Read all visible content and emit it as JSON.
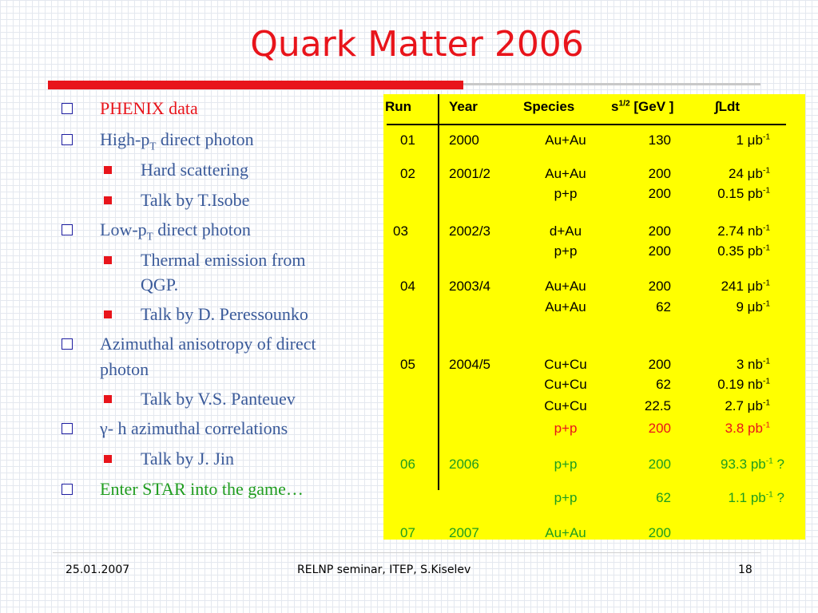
{
  "title": "Quark Matter 2006",
  "bullets": [
    {
      "text": "PHENIX data",
      "level": 1,
      "color": "#e8141b"
    },
    {
      "text_pre": "High-p",
      "sub": "T",
      "text_post": " direct photon",
      "level": 1
    },
    {
      "text": "Hard scattering",
      "level": 2
    },
    {
      "text": "Talk by T.Isobe",
      "level": 2
    },
    {
      "text_pre": "Low-p",
      "sub": "T",
      "text_post": " direct photon",
      "level": 1
    },
    {
      "text": "Thermal emission from",
      "text2": "QGP.",
      "level": 2
    },
    {
      "text": "Talk by D. Peressounko",
      "level": 2
    },
    {
      "text": "Azimuthal anisotropy of direct",
      "text2": "photon",
      "level": 1
    },
    {
      "text": "Talk by V.S. Panteuev",
      "level": 2
    },
    {
      "text": "γ- h azimuthal correlations",
      "level": 1
    },
    {
      "text": "Talk by J. Jin",
      "level": 2
    },
    {
      "text": "Enter STAR into the game…",
      "level": 1,
      "color": "#1f9c1f"
    }
  ],
  "table": {
    "headers": {
      "run": "Run",
      "year": "Year",
      "species": "Species",
      "energy_pre": "s",
      "energy_sup": "1/2",
      "energy_post": " [GeV ]",
      "lumi": "∫Ldt"
    },
    "rows": [
      {
        "run": "01",
        "year": "2000",
        "species": "Au+Au",
        "energy": "130",
        "lumi_val": "1 μb",
        "lumi_sup": "-1"
      },
      {
        "run": "02",
        "year": "2001/2",
        "species": "Au+Au",
        "energy": "200",
        "lumi_val": "24 μb",
        "lumi_sup": "-1"
      },
      {
        "run": "",
        "year": "",
        "species": "p+p",
        "energy": "200",
        "lumi_val": "0.15 pb",
        "lumi_sup": "-1"
      },
      {
        "run": "03",
        "year": "2002/3",
        "species": "d+Au",
        "energy": "200",
        "lumi_val": "2.74 nb",
        "lumi_sup": "-1"
      },
      {
        "run": "",
        "year": "",
        "species": "p+p",
        "energy": "200",
        "lumi_val": "0.35 pb",
        "lumi_sup": "-1"
      },
      {
        "run": "04",
        "year": "2003/4",
        "species": "Au+Au",
        "energy": "200",
        "lumi_val": "241 μb",
        "lumi_sup": "-1"
      },
      {
        "run": "",
        "year": "",
        "species": "Au+Au",
        "energy": "62",
        "lumi_val": "9 μb",
        "lumi_sup": "-1"
      },
      {
        "run": "05",
        "year": "2004/5",
        "species": "Cu+Cu",
        "energy": "200",
        "lumi_val": "3 nb",
        "lumi_sup": "-1"
      },
      {
        "run": "",
        "year": "",
        "species": "Cu+Cu",
        "energy": "62",
        "lumi_val": "0.19 nb",
        "lumi_sup": "-1"
      },
      {
        "run": "",
        "year": "",
        "species": "Cu+Cu",
        "energy": "22.5",
        "lumi_val": "2.7 μb",
        "lumi_sup": "-1"
      },
      {
        "run": "",
        "year": "",
        "species": "p+p",
        "energy": "200",
        "lumi_val": "3.8 pb",
        "lumi_sup": "-1",
        "color": "#e8141b"
      },
      {
        "run": "06",
        "year": "2006",
        "species": "p+p",
        "energy": "200",
        "lumi_val": "93.3 pb",
        "lumi_sup": "-1",
        "lumi_post": " ?",
        "color": "#1f9c1f"
      },
      {
        "run": "",
        "year": "",
        "species": "p+p",
        "energy": "62",
        "lumi_val": "1.1 pb",
        "lumi_sup": "-1",
        "lumi_post": " ?",
        "color": "#1f9c1f"
      },
      {
        "run": "07",
        "year": "2007",
        "species": "Au+Au",
        "energy": "200",
        "lumi_val": "",
        "lumi_sup": "",
        "color": "#1f9c1f"
      }
    ]
  },
  "footer": {
    "date": "25.01.2007",
    "center": "RELNP seminar,  ITEP,  S.Kiselev",
    "page": "18"
  },
  "colors": {
    "title": "#e8141b",
    "panel": "#ffff00",
    "text": "#3a5a9a",
    "red": "#e8141b",
    "green": "#1f9c1f"
  }
}
